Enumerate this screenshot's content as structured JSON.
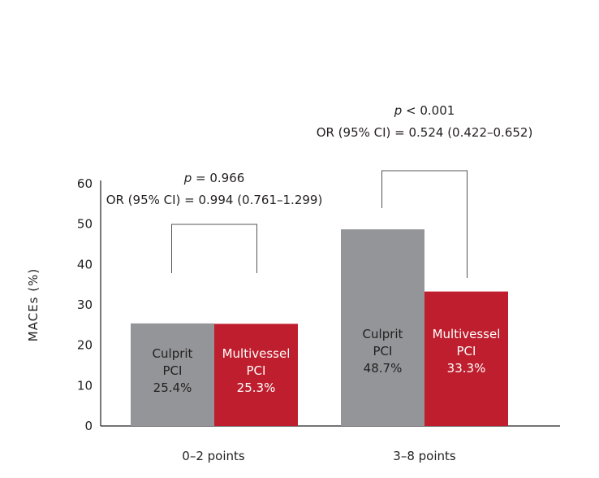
{
  "chart_data": {
    "type": "bar",
    "ylabel": "MACEs (%)",
    "xlabel": "",
    "ylim": [
      0,
      60
    ],
    "yticks": [
      0,
      10,
      20,
      30,
      40,
      50,
      60
    ],
    "grid": false,
    "categories": [
      "0–2 points",
      "3–8 points"
    ],
    "series": [
      {
        "name": "Culprit PCI",
        "label_lines": [
          "Culprit",
          "PCI"
        ],
        "color": "#939598",
        "values": [
          25.4,
          48.7
        ],
        "value_labels": [
          "25.4%",
          "48.7%"
        ]
      },
      {
        "name": "Multivessel PCI",
        "label_lines": [
          "Multivessel",
          "PCI"
        ],
        "color": "#be1e2d",
        "values": [
          25.3,
          33.3
        ],
        "value_labels": [
          "25.3%",
          "33.3%"
        ]
      }
    ],
    "annotations": [
      {
        "p_text": "= 0.966",
        "or_text": "OR (95% CI) = 0.994 (0.761–1.299)"
      },
      {
        "p_text": "< 0.001",
        "or_text": "OR (95% CI) = 0.524 (0.422–0.652)"
      }
    ]
  }
}
